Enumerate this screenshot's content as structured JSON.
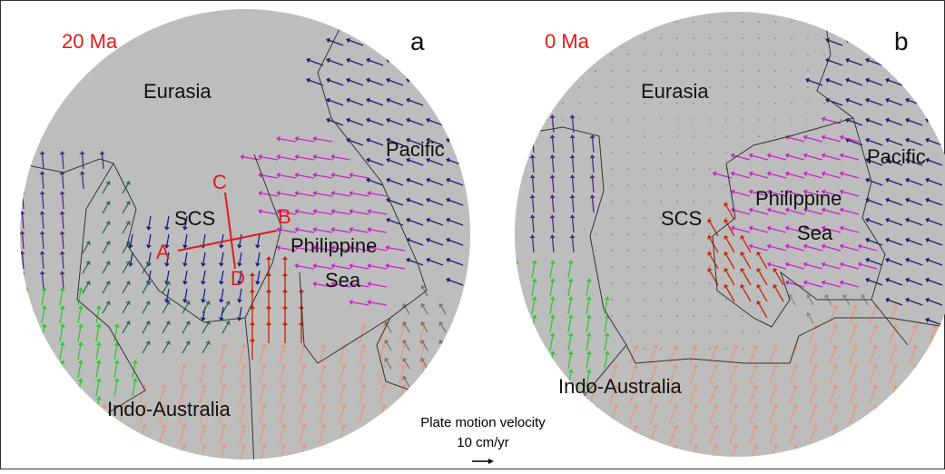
{
  "panels": [
    {
      "age": "20 Ma",
      "letter": "a",
      "labels": {
        "eurasia": "Eurasia",
        "pacific": "Pacific",
        "scs": "SCS",
        "philippine": [
          "Philippine",
          "Sea"
        ],
        "indo_australia": "Indo-Australia"
      },
      "profile_points": [
        "A",
        "B",
        "C",
        "D"
      ]
    },
    {
      "age": "0 Ma",
      "letter": "b",
      "labels": {
        "eurasia": "Eurasia",
        "pacific": "Pacific",
        "scs": "SCS",
        "philippine": [
          "Philippine",
          "Sea"
        ],
        "indo_australia": "Indo-Australia"
      }
    }
  ],
  "legend": {
    "title": "Plate motion velocity",
    "scale": "10 cm/yr"
  }
}
